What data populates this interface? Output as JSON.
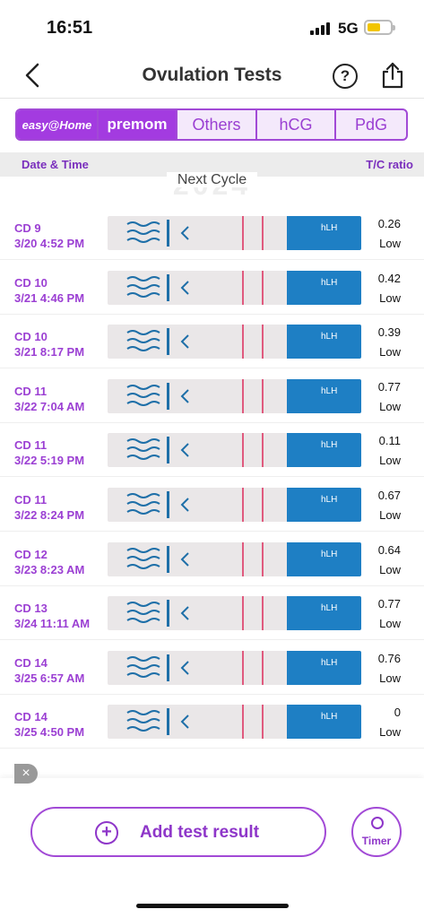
{
  "status_bar": {
    "time": "16:51",
    "network": "5G"
  },
  "nav": {
    "title": "Ovulation Tests",
    "help_label": "?"
  },
  "brand_tabs": [
    {
      "label": "easy@Home"
    },
    {
      "label": "premom"
    },
    {
      "label": "Others"
    },
    {
      "label": "hCG"
    },
    {
      "label": "PdG"
    }
  ],
  "columns": {
    "left": "Date & Time",
    "right": "T/C ratio"
  },
  "cycle_banner": {
    "label": "Next Cycle",
    "background_year": "2024"
  },
  "rows": [
    {
      "cd": "CD 9",
      "datetime": "3/20 4:52 PM",
      "ratio": "0.26",
      "level": "Low"
    },
    {
      "cd": "CD 10",
      "datetime": "3/21 4:46 PM",
      "ratio": "0.42",
      "level": "Low"
    },
    {
      "cd": "CD 10",
      "datetime": "3/21 8:17 PM",
      "ratio": "0.39",
      "level": "Low"
    },
    {
      "cd": "CD 11",
      "datetime": "3/22 7:04 AM",
      "ratio": "0.77",
      "level": "Low"
    },
    {
      "cd": "CD 11",
      "datetime": "3/22 5:19 PM",
      "ratio": "0.11",
      "level": "Low"
    },
    {
      "cd": "CD 11",
      "datetime": "3/22 8:24 PM",
      "ratio": "0.67",
      "level": "Low"
    },
    {
      "cd": "CD 12",
      "datetime": "3/23 8:23 AM",
      "ratio": "0.64",
      "level": "Low"
    },
    {
      "cd": "CD 13",
      "datetime": "3/24 11:11 AM",
      "ratio": "0.77",
      "level": "Low"
    },
    {
      "cd": "CD 14",
      "datetime": "3/25 6:57 AM",
      "ratio": "0.76",
      "level": "Low"
    },
    {
      "cd": "CD 14",
      "datetime": "3/25 4:50 PM",
      "ratio": "0",
      "level": "Low"
    }
  ],
  "strip": {
    "label": "hLH",
    "blue": "#1e7fc4",
    "bg": "#eae7e8",
    "line": "#e05a7e"
  },
  "bottom": {
    "add_label": "Add test result",
    "timer_label": "Timer"
  },
  "colors": {
    "accent": "#9b3fd3"
  }
}
